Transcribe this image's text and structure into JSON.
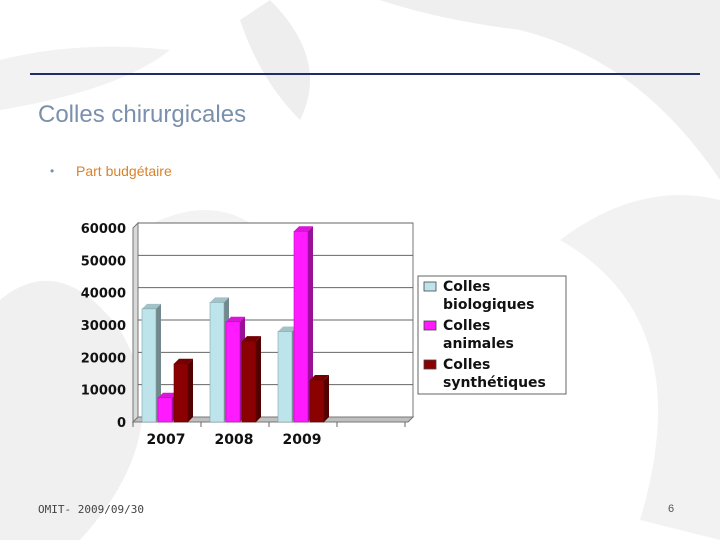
{
  "slide": {
    "title": "Colles chirurgicales",
    "bullet": "Part budgétaire",
    "footer_left": "OMIT- 2009/09/30",
    "page_number": "6"
  },
  "colors": {
    "rule": "#1f2d6b",
    "title": "#7a90ad",
    "bullet_text": "#d9822b"
  },
  "chart_data": {
    "type": "bar",
    "categories": [
      "2007",
      "2008",
      "2009"
    ],
    "series": [
      {
        "name": "Colles biologiques",
        "values": [
          35000,
          37000,
          28000
        ],
        "color": "#bde4ea"
      },
      {
        "name": "Colles animales",
        "values": [
          7500,
          31000,
          59000
        ],
        "color": "#ff1aff"
      },
      {
        "name": "Colles synthétiques",
        "values": [
          18000,
          25000,
          13000
        ],
        "color": "#8b0000"
      }
    ],
    "y_ticks": [
      "0",
      "10000",
      "20000",
      "30000",
      "40000",
      "50000",
      "60000"
    ],
    "ylim": [
      0,
      60000
    ],
    "grid": true,
    "legend_position": "right",
    "style": "3d-bars"
  }
}
